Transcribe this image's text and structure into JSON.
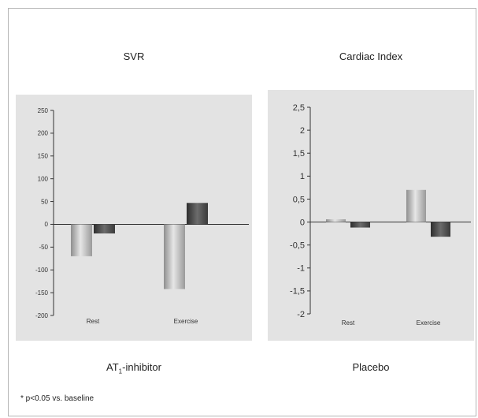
{
  "chart_data": [
    {
      "type": "bar",
      "title": "SVR",
      "categories": [
        "Rest",
        "Exercise"
      ],
      "series": [
        {
          "values": [
            -70,
            -142
          ],
          "color": "#a8a8a8"
        },
        {
          "values": [
            -20,
            47
          ],
          "color": "#4a4a4a"
        }
      ],
      "yticks": [
        "250",
        "200",
        "150",
        "100",
        "50",
        "0",
        "-50",
        "-100",
        "-150",
        "-200"
      ],
      "ylim": [
        -200,
        250
      ],
      "grid": false
    },
    {
      "type": "bar",
      "title": "Cardiac Index",
      "categories": [
        "Rest",
        "Exercise"
      ],
      "series": [
        {
          "values": [
            0.06,
            0.7
          ],
          "color": "#a8a8a8"
        },
        {
          "values": [
            -0.12,
            -0.32
          ],
          "color": "#4a4a4a"
        }
      ],
      "yticks": [
        "2,5",
        "2",
        "1,5",
        "1",
        "0,5",
        "0",
        "-0,5",
        "-1",
        "-1,5",
        "-2"
      ],
      "ylim": [
        -2,
        2.5
      ],
      "grid": false
    }
  ],
  "legend": {
    "left_main": "AT",
    "left_sub": "1",
    "left_rest": "-inhibitor",
    "right": "Placebo"
  },
  "footnote": "* p<0.05 vs. baseline"
}
